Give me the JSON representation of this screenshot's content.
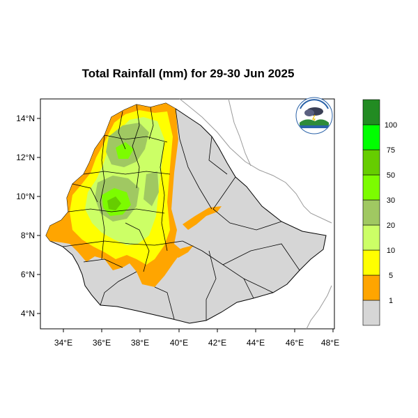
{
  "title": "Total Rainfall (mm) for 29-30 Jun 2025",
  "map": {
    "lon_range": [
      33,
      48
    ],
    "lat_range": [
      3.2,
      14.9
    ],
    "lon_ticks": [
      "34°E",
      "36°E",
      "38°E",
      "40°E",
      "42°E",
      "44°E",
      "46°E",
      "48°E"
    ],
    "lat_ticks": [
      "4°N",
      "6°N",
      "8°N",
      "10°N",
      "12°N",
      "14°N"
    ],
    "land_color": "#d6d6d6",
    "border_color": "#000000"
  },
  "legend": {
    "colors": [
      "#d6d6d6",
      "#ffa500",
      "#ffff00",
      "#ccff66",
      "#a0c862",
      "#7cfc00",
      "#66cd00",
      "#00ff00",
      "#228b22"
    ],
    "labels": [
      "1",
      "5",
      "10",
      "20",
      "30",
      "50",
      "75",
      "100"
    ]
  },
  "logo": {
    "icon": "ethiopian-meteorology-institute-logo"
  }
}
